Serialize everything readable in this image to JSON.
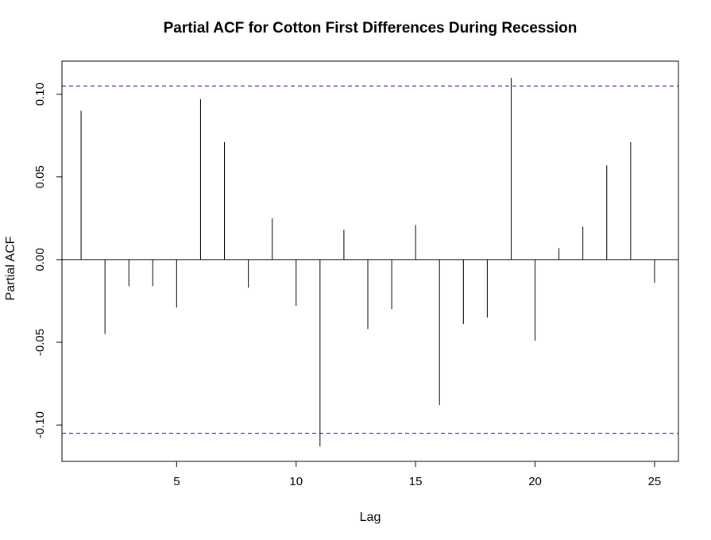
{
  "chart_data": {
    "type": "bar",
    "title": "Partial ACF for Cotton First Differences During Recession",
    "xlabel": "Lag",
    "ylabel": "Partial ACF",
    "xlim": [
      0.2,
      26.0
    ],
    "ylim": [
      -0.122,
      0.12
    ],
    "x_ticks": [
      5,
      10,
      15,
      20,
      25
    ],
    "x_tick_labels": [
      "5",
      "10",
      "15",
      "20",
      "25"
    ],
    "y_ticks": [
      -0.1,
      -0.05,
      0.0,
      0.05,
      0.1
    ],
    "y_tick_labels": [
      "-0.10",
      "-0.05",
      "0.00",
      "0.05",
      "0.10"
    ],
    "lags": [
      1,
      2,
      3,
      4,
      5,
      6,
      7,
      8,
      9,
      10,
      11,
      12,
      13,
      14,
      15,
      16,
      17,
      18,
      19,
      20,
      21,
      22,
      23,
      24,
      25
    ],
    "values": [
      0.09,
      -0.045,
      -0.016,
      -0.016,
      -0.029,
      0.097,
      0.071,
      -0.017,
      0.025,
      -0.028,
      -0.113,
      0.018,
      -0.042,
      -0.03,
      0.021,
      -0.088,
      -0.039,
      -0.035,
      0.11,
      -0.049,
      0.007,
      0.02,
      0.057,
      0.071,
      -0.014
    ],
    "confidence_bound": 0.105,
    "bound_color": "#0000cc",
    "line_color": "#000000",
    "grid": false,
    "legend": "none"
  }
}
